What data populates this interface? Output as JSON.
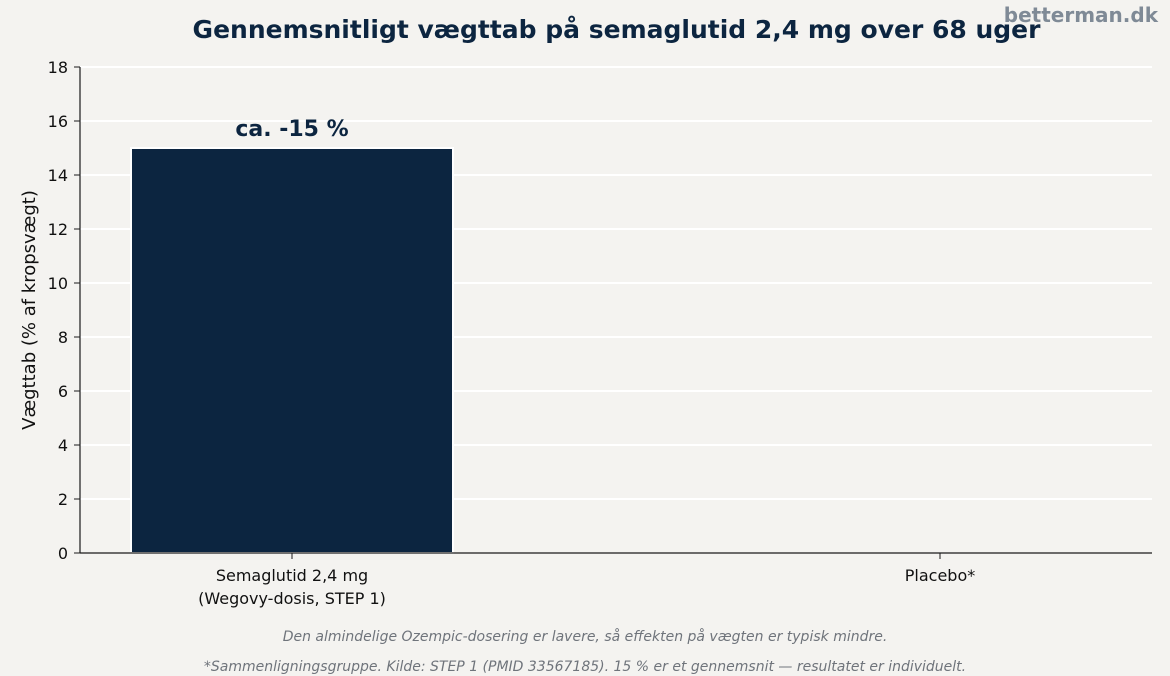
{
  "header": {
    "brand": "betterman.dk"
  },
  "footer": {
    "note": "Den almindelige Ozempic-dosering er lavere, så effekten på vægten er typisk mindre.",
    "source": "*Sammenligningsgruppe. Kilde: STEP 1 (PMID 33567185). 15 % er et gennemsnit — resultatet er individuelt."
  },
  "chart_data": {
    "type": "bar",
    "title": "Gennemsnitligt vægttab på semaglutid 2,4 mg over 68 uger",
    "xlabel": "",
    "ylabel": "Vægttab (% af kropsvægt)",
    "ylim": [
      0,
      18
    ],
    "yticks": [
      0,
      2,
      4,
      6,
      8,
      10,
      12,
      14,
      16,
      18
    ],
    "grid": true,
    "categories": [
      [
        "Semaglutid 2,4 mg",
        "(Wegovy-dosis, STEP 1)"
      ],
      [
        "Placebo*"
      ]
    ],
    "values": [
      15,
      0
    ],
    "data_labels": [
      "ca. -15 %",
      ""
    ],
    "colors": {
      "bar": "#0c2540",
      "bar_edge": "#ffffff",
      "grid": "#ffffff",
      "axis": "#1a1a1a",
      "text": "#111111",
      "label": "#0c2540",
      "background": "#f4f3f0"
    }
  }
}
